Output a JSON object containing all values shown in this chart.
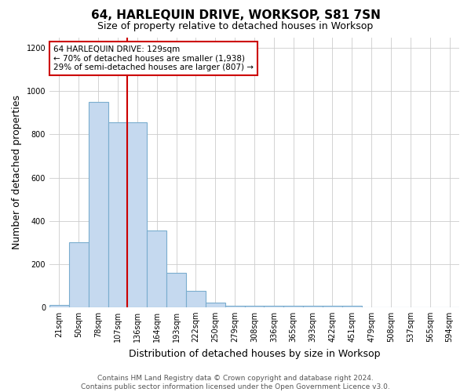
{
  "title": "64, HARLEQUIN DRIVE, WORKSOP, S81 7SN",
  "subtitle": "Size of property relative to detached houses in Worksop",
  "xlabel": "Distribution of detached houses by size in Worksop",
  "ylabel": "Number of detached properties",
  "bar_labels": [
    "21sqm",
    "50sqm",
    "78sqm",
    "107sqm",
    "136sqm",
    "164sqm",
    "193sqm",
    "222sqm",
    "250sqm",
    "279sqm",
    "308sqm",
    "336sqm",
    "365sqm",
    "393sqm",
    "422sqm",
    "451sqm",
    "479sqm",
    "508sqm",
    "537sqm",
    "565sqm",
    "594sqm"
  ],
  "bar_values": [
    10,
    300,
    950,
    855,
    855,
    355,
    160,
    75,
    20,
    5,
    5,
    5,
    5,
    5,
    5,
    5,
    0,
    0,
    0,
    0,
    0
  ],
  "bar_color": "#c5d9ef",
  "bar_edge_color": "#7aadce",
  "bar_edge_width": 0.8,
  "red_line_x": 3.5,
  "red_line_color": "#cc0000",
  "annotation_text": "64 HARLEQUIN DRIVE: 129sqm\n← 70% of detached houses are smaller (1,938)\n29% of semi-detached houses are larger (807) →",
  "annotation_box_color": "#ffffff",
  "annotation_box_edge_color": "#cc0000",
  "ylim": [
    0,
    1250
  ],
  "yticks": [
    0,
    200,
    400,
    600,
    800,
    1000,
    1200
  ],
  "footer_text": "Contains HM Land Registry data © Crown copyright and database right 2024.\nContains public sector information licensed under the Open Government Licence v3.0.",
  "bg_color": "#ffffff",
  "grid_color": "#cccccc",
  "title_fontsize": 11,
  "subtitle_fontsize": 9,
  "axis_label_fontsize": 9,
  "tick_fontsize": 7,
  "footer_fontsize": 6.5,
  "annotation_fontsize": 7.5
}
